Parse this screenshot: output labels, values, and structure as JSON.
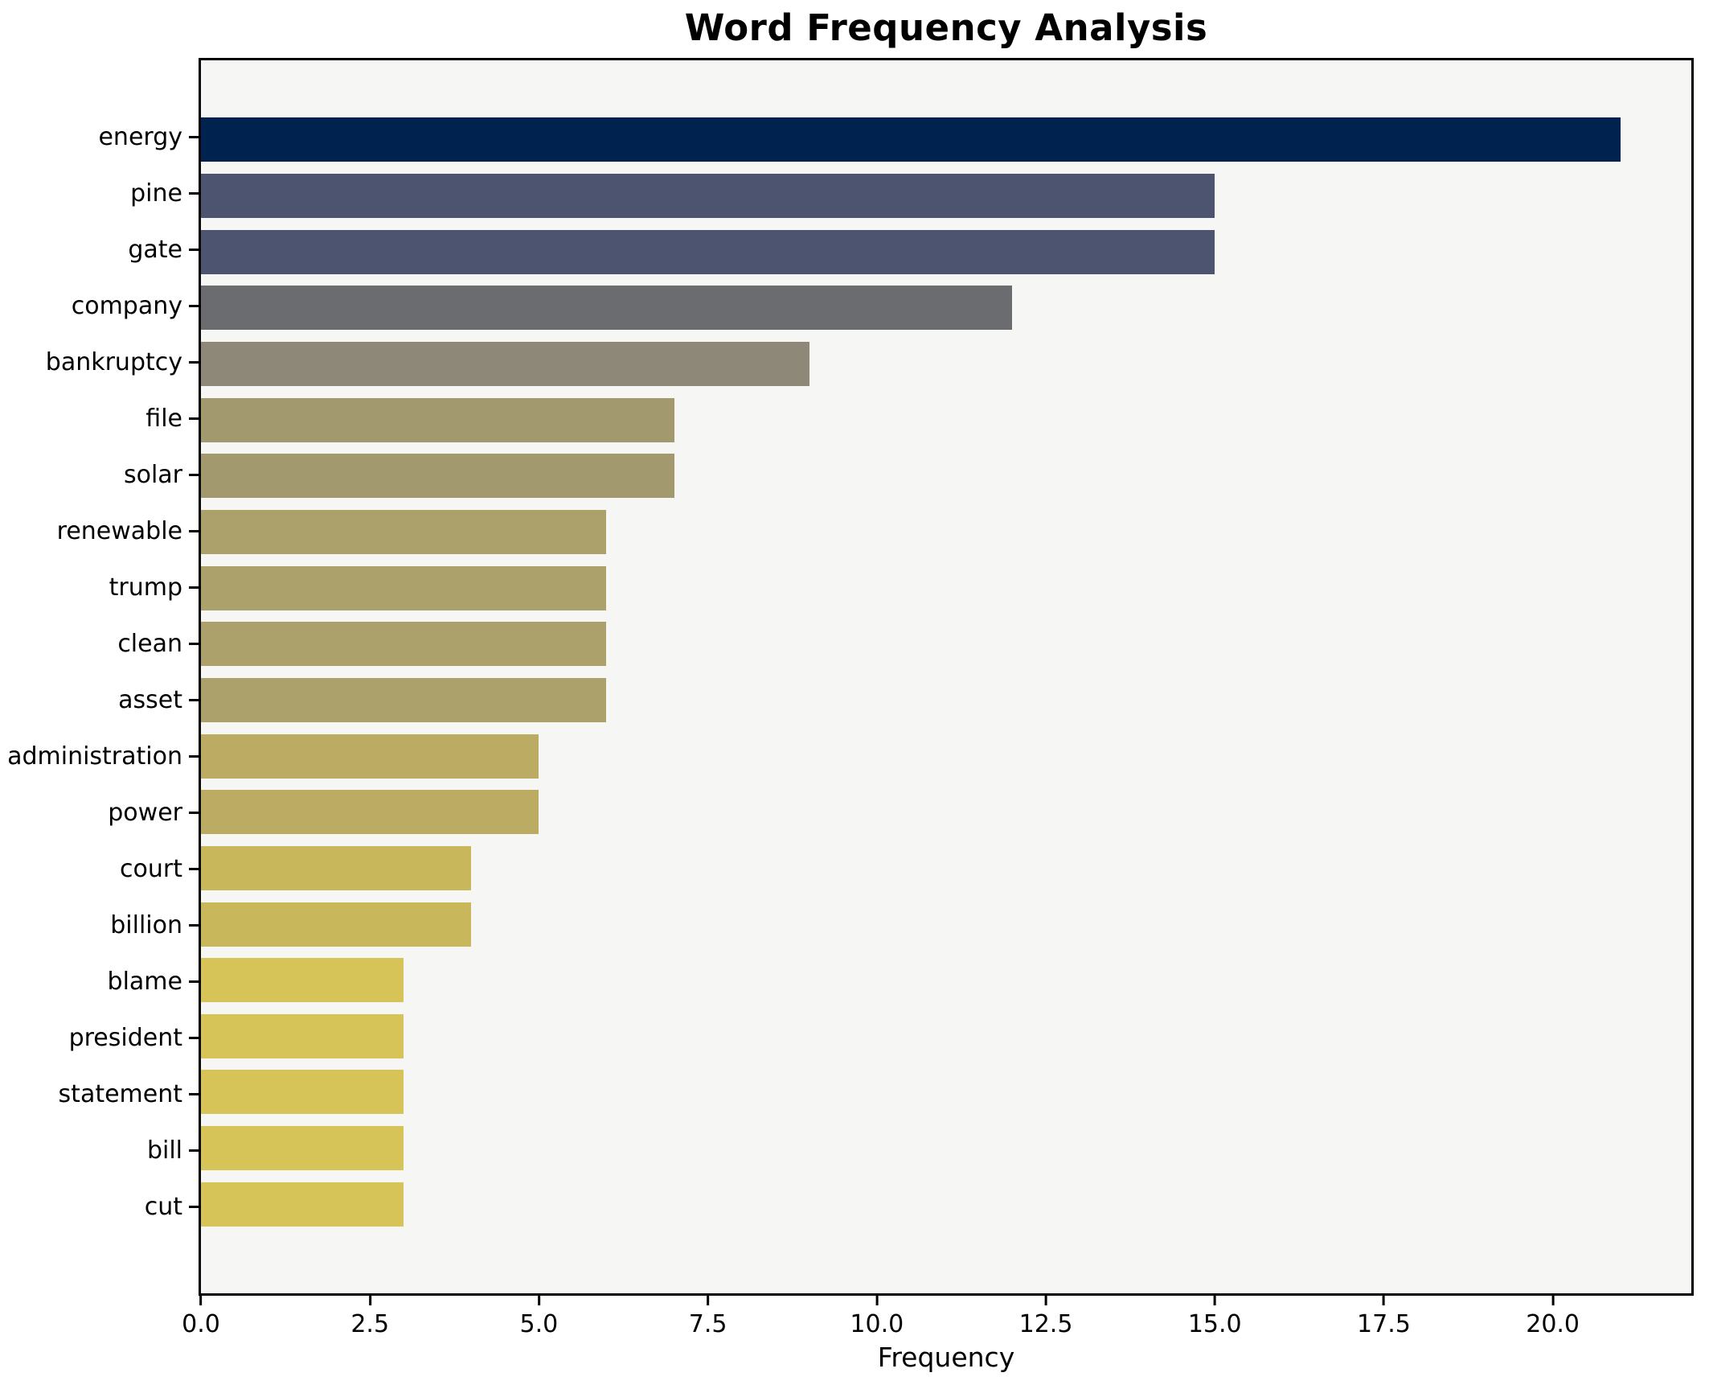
{
  "chart_data": {
    "type": "bar",
    "orientation": "horizontal",
    "title": "Word Frequency Analysis",
    "xlabel": "Frequency",
    "ylabel": "",
    "categories": [
      "energy",
      "pine",
      "gate",
      "company",
      "bankruptcy",
      "file",
      "solar",
      "renewable",
      "trump",
      "clean",
      "asset",
      "administration",
      "power",
      "court",
      "billion",
      "blame",
      "president",
      "statement",
      "bill",
      "cut"
    ],
    "values": [
      21,
      15,
      15,
      12,
      9,
      7,
      7,
      6,
      6,
      6,
      6,
      5,
      5,
      4,
      4,
      3,
      3,
      3,
      3,
      3
    ],
    "bar_colors": [
      "#00224e",
      "#4c546f",
      "#4c546f",
      "#6a6c70",
      "#8e8878",
      "#a29a6e",
      "#a29a6e",
      "#aca06b",
      "#aca06b",
      "#aca06b",
      "#aca06b",
      "#bcab62",
      "#bcab62",
      "#c9b75c",
      "#c9b75c",
      "#d7c458",
      "#d7c458",
      "#d7c458",
      "#d7c458",
      "#d7c458"
    ],
    "xlim": [
      0,
      22.05
    ],
    "xticks": [
      0.0,
      2.5,
      5.0,
      7.5,
      10.0,
      12.5,
      15.0,
      17.5,
      20.0
    ],
    "xtick_labels": [
      "0.0",
      "2.5",
      "5.0",
      "7.5",
      "10.0",
      "12.5",
      "15.0",
      "17.5",
      "20.0"
    ],
    "grid": false,
    "legend": "none",
    "plot_background": "#f6f6f4",
    "figure_background": "#ffffff",
    "spine_color": "#000000"
  }
}
